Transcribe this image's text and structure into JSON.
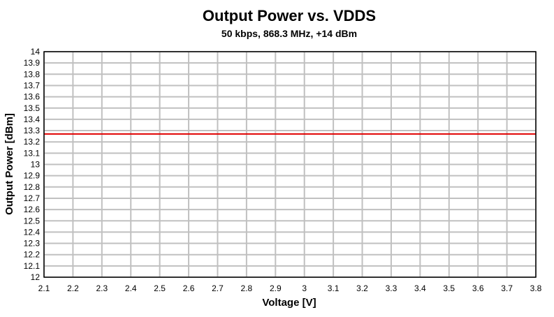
{
  "chart_data": {
    "type": "line",
    "title": "Output Power vs. VDDS",
    "subtitle": "50 kbps, 868.3 MHz, +14 dBm",
    "xlabel": "Voltage [V]",
    "ylabel": "Output Power [dBm]",
    "xlim": [
      2.1,
      3.8
    ],
    "ylim": [
      12,
      14
    ],
    "x_ticks": [
      2.1,
      2.2,
      2.3,
      2.4,
      2.5,
      2.6,
      2.7,
      2.8,
      2.9,
      3,
      3.1,
      3.2,
      3.3,
      3.4,
      3.5,
      3.6,
      3.7,
      3.8
    ],
    "x_tick_labels": [
      "2.1",
      "2.2",
      "2.3",
      "2.4",
      "2.5",
      "2.6",
      "2.7",
      "2.8",
      "2.9",
      "3",
      "3.1",
      "3.2",
      "3.3",
      "3.4",
      "3.5",
      "3.6",
      "3.7",
      "3.8"
    ],
    "y_ticks": [
      12,
      12.1,
      12.2,
      12.3,
      12.4,
      12.5,
      12.6,
      12.7,
      12.8,
      12.9,
      13,
      13.1,
      13.2,
      13.3,
      13.4,
      13.5,
      13.6,
      13.7,
      13.8,
      13.9,
      14
    ],
    "y_tick_labels": [
      "12",
      "12.1",
      "12.2",
      "12.3",
      "12.4",
      "12.5",
      "12.6",
      "12.7",
      "12.8",
      "12.9",
      "13",
      "13.1",
      "13.2",
      "13.3",
      "13.4",
      "13.5",
      "13.6",
      "13.7",
      "13.8",
      "13.9",
      "14"
    ],
    "grid": true,
    "legend": "none",
    "series": [
      {
        "name": "Output Power",
        "color": "#e00000",
        "x": [
          2.1,
          2.2,
          2.3,
          2.4,
          2.5,
          2.6,
          2.7,
          2.8,
          2.9,
          3.0,
          3.1,
          3.2,
          3.3,
          3.4,
          3.5,
          3.6,
          3.7,
          3.8
        ],
        "y": [
          13.27,
          13.27,
          13.27,
          13.27,
          13.27,
          13.27,
          13.27,
          13.27,
          13.27,
          13.27,
          13.27,
          13.27,
          13.27,
          13.27,
          13.27,
          13.27,
          13.27,
          13.27
        ]
      }
    ]
  }
}
